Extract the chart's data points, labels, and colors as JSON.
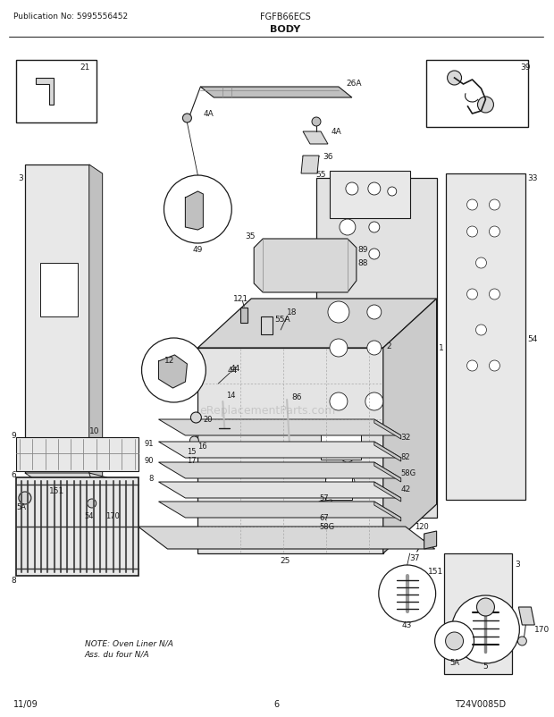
{
  "pub_no": "Publication No: 5995556452",
  "model": "FGFB66ECS",
  "section": "BODY",
  "diagram_id": "T24V0085D",
  "date": "11/09",
  "page": "6",
  "note_line1": "NOTE: Oven Liner N/A",
  "note_line2": "Ass. du four N/A",
  "watermark": "eReplacementParts.com",
  "bg_color": "#ffffff",
  "lc": "#1a1a1a",
  "gc": "#c0c0c0",
  "gc2": "#d8d8d8",
  "gc3": "#e8e8e8"
}
